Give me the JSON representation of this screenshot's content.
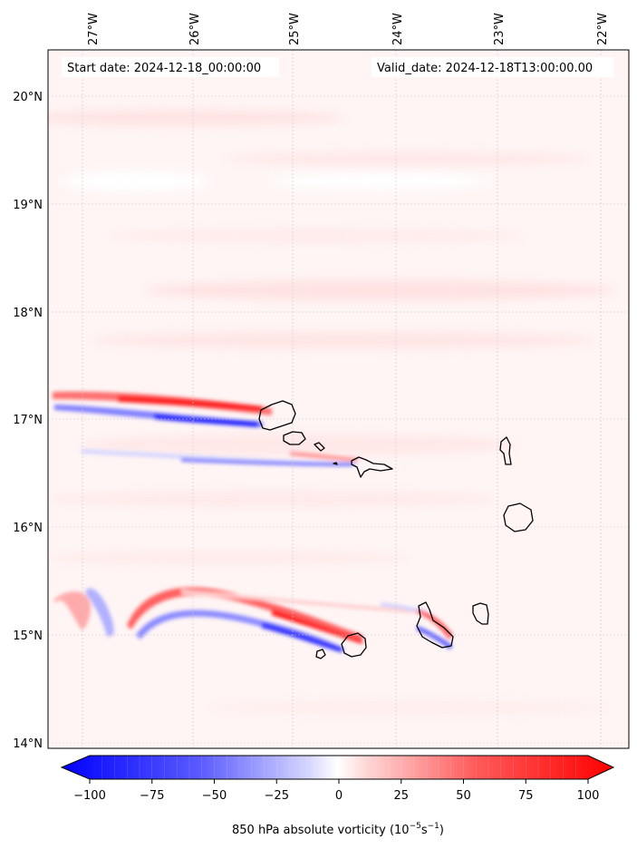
{
  "map": {
    "start_date": "Start date: 2024-12-18_00:00:00",
    "valid_date": "Valid_date: 2024-12-18T13:00:00.00",
    "lon_labels": [
      "27°W",
      "26°W",
      "25°W",
      "24°W",
      "23°W",
      "22°W"
    ],
    "lat_labels": [
      "20°N",
      "19°N",
      "18°N",
      "17°N",
      "16°N",
      "15°N",
      "14°N"
    ]
  },
  "colorbar": {
    "ticks": [
      "−100",
      "−75",
      "−50",
      "−25",
      "0",
      "25",
      "50",
      "75",
      "100"
    ],
    "label_main": "850 hPa absolute vorticity (10",
    "label_sup1": "−5",
    "label_mid": "s",
    "label_sup2": "−1",
    "label_end": ")",
    "min": -100,
    "max": 100,
    "colors": {
      "negative": "#0000ff",
      "zero": "#ffffff",
      "positive": "#ff0000"
    }
  }
}
